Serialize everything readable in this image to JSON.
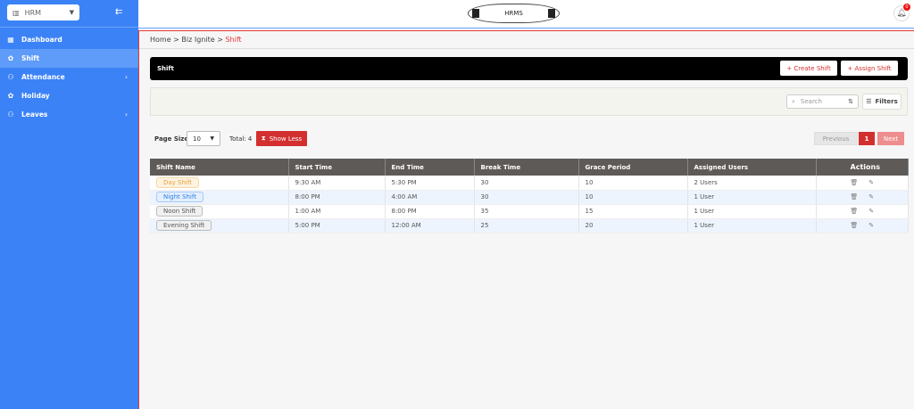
{
  "sidebar": {
    "org": "HRM",
    "items": [
      {
        "label": "Dashboard",
        "icon": "dashboard-icon"
      },
      {
        "label": "Shift",
        "icon": "shift-icon",
        "active": true
      },
      {
        "label": "Attendance",
        "icon": "attendance-icon",
        "has_children": true
      },
      {
        "label": "Holiday",
        "icon": "holiday-icon"
      },
      {
        "label": "Leaves",
        "icon": "leaves-icon",
        "has_children": true
      }
    ]
  },
  "header": {
    "logo": "HRMS",
    "notifications": "0"
  },
  "breadcrumb": {
    "home": "Home",
    "section": "Biz Ignite",
    "current": "Shift",
    "sep": ">"
  },
  "page": {
    "title": "Shift",
    "create": "+ Create Shift",
    "assign": "+ Assign Shift"
  },
  "filters": {
    "search_placeholder": "Search",
    "filters_label": "Filters"
  },
  "pagination": {
    "page_size_label": "Page Size",
    "page_size": "10",
    "total": "Total: 4",
    "show_less": "Show Less",
    "previous": "Previous",
    "current_page": "1",
    "next": "Next"
  },
  "table": {
    "headers": [
      "Shift Name",
      "Start Time",
      "End Time",
      "Break Time",
      "Grace Period",
      "Assigned Users",
      "Actions"
    ],
    "rows": [
      {
        "name": "Day Shift",
        "start": "9:30 AM",
        "end": "5:30 PM",
        "break": "30",
        "grace": "10",
        "users": "2 Users",
        "color": "#e6a23c",
        "bg": "#fdf3e1"
      },
      {
        "name": "Night Shift",
        "start": "8:00 PM",
        "end": "4:00 AM",
        "break": "30",
        "grace": "10",
        "users": "1 User",
        "color": "#2f7fe0",
        "bg": "#e3efff"
      },
      {
        "name": "Noon Shift",
        "start": "1:00 AM",
        "end": "8:00 PM",
        "break": "35",
        "grace": "15",
        "users": "1 User",
        "color": "#555555",
        "bg": "#f1f1f1"
      },
      {
        "name": "Evening Shift",
        "start": "5:00 PM",
        "end": "12:00 AM",
        "break": "25",
        "grace": "20",
        "users": "1 User",
        "color": "#555555",
        "bg": "#f1f1f1"
      }
    ]
  },
  "colors": {
    "sidebar": "#3b82f6",
    "accent": "#d32f2f"
  }
}
